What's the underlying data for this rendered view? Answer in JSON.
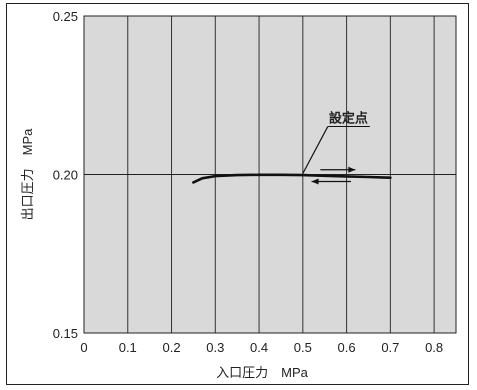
{
  "chart_data": {
    "type": "line",
    "xlabel": "入口圧力　MPa",
    "ylabel": "出口圧力　MPa",
    "xlim": [
      0,
      0.85
    ],
    "ylim": [
      0.15,
      0.25
    ],
    "x_ticks": [
      "0",
      "0.1",
      "0.2",
      "0.3",
      "0.4",
      "0.5",
      "0.6",
      "0.7",
      "0.8"
    ],
    "y_ticks": [
      "0.15",
      "0.20",
      "0.25"
    ],
    "grid": "vertical lines at x ticks; horizontal reference line at y = 0.20",
    "background_color": "#d9d9d9",
    "series": [
      {
        "x": [
          0.25,
          0.27,
          0.3,
          0.35,
          0.4,
          0.45,
          0.5,
          0.55,
          0.6,
          0.65,
          0.7
        ],
        "y": [
          0.1975,
          0.1988,
          0.1995,
          0.1998,
          0.1999,
          0.1999,
          0.1998,
          0.1996,
          0.1994,
          0.1992,
          0.199
        ],
        "color": "#111111"
      }
    ],
    "annotations": [
      {
        "text": "設定点",
        "x": 0.5,
        "y": 0.2
      }
    ],
    "arrows": [
      {
        "direction": "right",
        "x_from": 0.54,
        "x_to": 0.62,
        "y": 0.2015
      },
      {
        "direction": "left",
        "x_from": 0.61,
        "x_to": 0.52,
        "y": 0.1978
      }
    ]
  }
}
